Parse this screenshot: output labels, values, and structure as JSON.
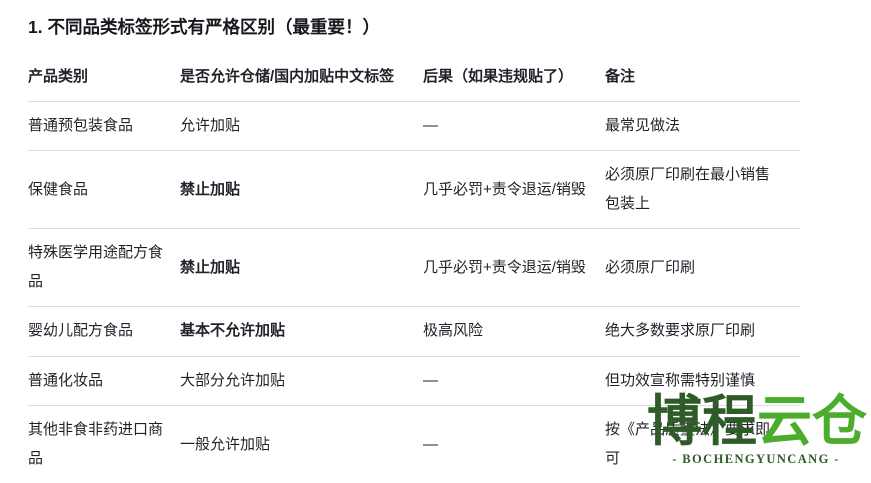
{
  "page": {
    "title": "1. 不同品类标签形式有严格区别（最重要！）"
  },
  "table": {
    "headers": [
      "产品类别",
      "是否允许仓储/国内加贴中文标签",
      "后果（如果违规贴了）",
      "备注"
    ],
    "rows": [
      {
        "category": "普通预包装食品",
        "allowed": "允许加贴",
        "consequence": "—",
        "note": "最常见做法"
      },
      {
        "category": "保健食品",
        "allowed": "禁止加贴",
        "consequence": "几乎必罚+责令退运/销毁",
        "note": "必须原厂印刷在最小销售包装上"
      },
      {
        "category": "特殊医学用途配方食品",
        "allowed": "禁止加贴",
        "consequence": "几乎必罚+责令退运/销毁",
        "note": "必须原厂印刷"
      },
      {
        "category": "婴幼儿配方食品",
        "allowed": "基本不允许加贴",
        "consequence": "极高风险",
        "note": "绝大多数要求原厂印刷"
      },
      {
        "category": "普通化妆品",
        "allowed": "大部分允许加贴",
        "consequence": "—",
        "note": "但功效宣称需特别谨慎"
      },
      {
        "category": "其他非食非药进口商品",
        "allowed": "一般允许加贴",
        "consequence": "—",
        "note": "按《产品质量法》要求即可"
      }
    ]
  },
  "watermark": {
    "logo_dark": "博程",
    "logo_bright": "云仓",
    "subtext": "- BOCHENGYUNCANG -",
    "color_dark": "#2E5B28",
    "color_bright": "#4CAD2C"
  }
}
